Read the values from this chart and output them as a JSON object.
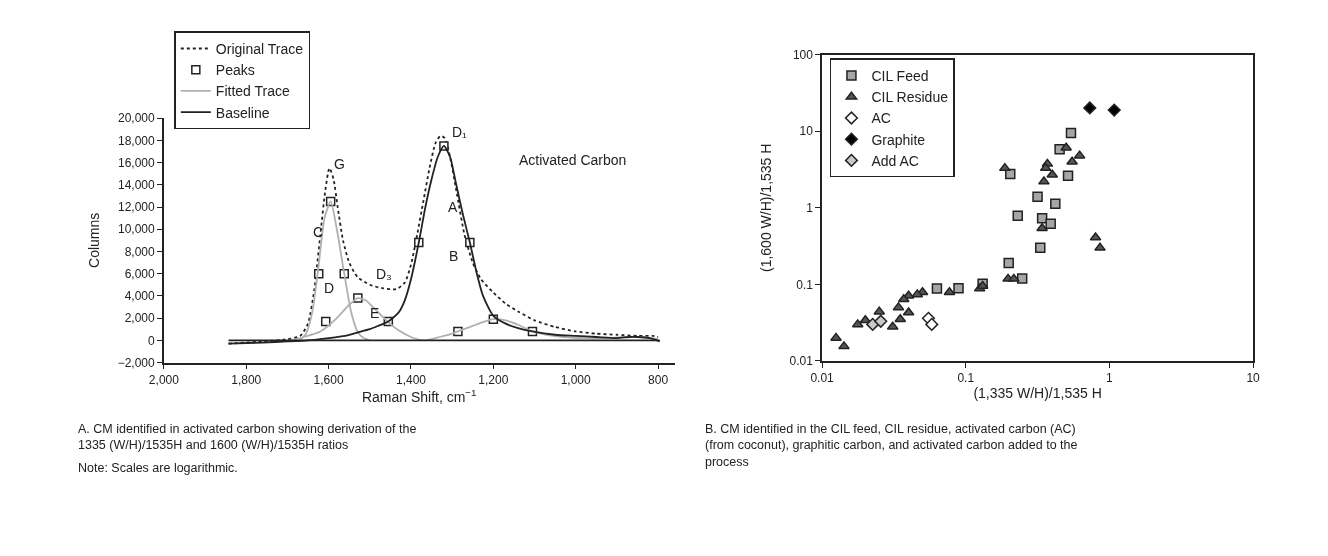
{
  "chart_data": [
    {
      "type": "line",
      "xlabel": "Raman Shift, cm$^{−1}$",
      "ylabel": "Columns",
      "xlim": [
        2000,
        760
      ],
      "ylim": [
        -2000,
        20000
      ],
      "xticks": [
        {
          "value": 2000,
          "label": "2,000"
        },
        {
          "value": 1800,
          "label": "1,800"
        },
        {
          "value": 1600,
          "label": "1,600"
        },
        {
          "value": 1400,
          "label": "1,400"
        },
        {
          "value": 1200,
          "label": "1,200"
        },
        {
          "value": 1000,
          "label": "1,000"
        },
        {
          "value": 800,
          "label": "800"
        }
      ],
      "yticks": [
        {
          "value": -2000,
          "label": "−2,000"
        },
        0,
        {
          "value": 2000,
          "label": "2,000"
        },
        {
          "value": 4000,
          "label": "4,000"
        },
        {
          "value": 6000,
          "label": "6,000"
        },
        {
          "value": 8000,
          "label": "8,000"
        },
        {
          "value": 10000,
          "label": "10,000"
        },
        {
          "value": 12000,
          "label": "12,000"
        },
        {
          "value": 14000,
          "label": "14,000"
        },
        {
          "value": 16000,
          "label": "16,000"
        },
        {
          "value": 18000,
          "label": "18,000"
        },
        {
          "value": 20000,
          "label": "20,000"
        }
      ],
      "grid": false,
      "legend": "top left",
      "series": [
        {
          "name": "Original Trace",
          "type": "line",
          "line_style": "dotted",
          "color": "#222222",
          "x": [
            1843,
            1760,
            1700,
            1669,
            1650,
            1635,
            1620,
            1608,
            1598,
            1588,
            1578,
            1565,
            1550,
            1530,
            1500,
            1470,
            1436,
            1415,
            1400,
            1385,
            1370,
            1355,
            1340,
            1328,
            1318,
            1305,
            1290,
            1270,
            1250,
            1230,
            1200,
            1170,
            1140,
            1100,
            1050,
            1000,
            950,
            900,
            850,
            812,
            800
          ],
          "values": [
            -300,
            -100,
            100,
            400,
            1500,
            4500,
            9500,
            13500,
            15500,
            14500,
            12000,
            9000,
            7000,
            5700,
            5000,
            4700,
            4600,
            5200,
            6800,
            9500,
            12500,
            15500,
            17800,
            18400,
            18200,
            16500,
            13500,
            9500,
            7000,
            5500,
            4300,
            3300,
            2600,
            1800,
            1200,
            800,
            600,
            500,
            400,
            400,
            300
          ]
        },
        {
          "name": "Peaks",
          "type": "scatter",
          "marker": "square",
          "color": "#ffffff",
          "x": [
            1595,
            1320,
            1381,
            1257,
            1624,
            1562,
            1607,
            1529,
            1455,
            1286,
            1200,
            1105
          ],
          "values": [
            12500,
            17500,
            8800,
            8800,
            6000,
            6000,
            1700,
            3800,
            1700,
            800,
            1900,
            800
          ]
        },
        {
          "name": "Fitted Trace",
          "type": "line",
          "line_style": "solid",
          "color": "#b0b0b0",
          "x": [
            1670,
            1655,
            1640,
            1625,
            1610,
            1595,
            1580,
            1562,
            1545,
            1530,
            1515,
            1500,
            null,
            1700,
            1660,
            1620,
            1580,
            1550,
            1529,
            1510,
            1490,
            1460,
            1430,
            1400,
            1367,
            1330,
            1300,
            1286,
            1250,
            1220,
            1200,
            1170,
            1140,
            1105,
            1070,
            1030,
            980,
            930,
            880,
            840,
            800
          ],
          "values": [
            0,
            600,
            2500,
            6500,
            11000,
            12500,
            10000,
            6000,
            2500,
            800,
            200,
            0,
            null,
            -100,
            300,
            800,
            2000,
            3200,
            3800,
            3600,
            2900,
            1800,
            900,
            300,
            0,
            300,
            600,
            800,
            1300,
            1700,
            1900,
            1800,
            1400,
            800,
            500,
            300,
            200,
            200,
            300,
            300,
            100
          ]
        },
        {
          "name": "Baseline",
          "type": "line",
          "line_style": "solid",
          "color": "#222222",
          "x": [
            1843,
            1760,
            1700,
            1650,
            1600,
            1560,
            1530,
            1500,
            1480,
            1455,
            1430,
            1415,
            1400,
            1381,
            1365,
            1350,
            1335,
            1320,
            1305,
            1290,
            1275,
            1257,
            1240,
            1225,
            1200,
            1170,
            1140,
            1105,
            1050,
            1000,
            950,
            900,
            870,
            850,
            820,
            796
          ],
          "values": [
            -300,
            -200,
            -100,
            0,
            200,
            400,
            700,
            1000,
            1300,
            1700,
            2500,
            3600,
            5500,
            8800,
            12000,
            14500,
            16500,
            17500,
            16500,
            14000,
            11500,
            8800,
            6000,
            4000,
            2200,
            1500,
            1100,
            800,
            500,
            400,
            300,
            200,
            300,
            300,
            200,
            -100
          ]
        },
        {
          "type": "line",
          "line_style": "solid",
          "color": "#222222",
          "x": [
            1843,
            796
          ],
          "values": [
            0,
            0
          ]
        }
      ],
      "annotations": [
        "G",
        "D₁",
        "Activated Carbon",
        "C",
        "A",
        "B",
        "D",
        "D₃",
        "E",
        "A. CM identified in activated carbon showing derivation of the 1335 (W/H)/1535H and 1600 (W/H)/1535H ratios",
        "Note: Scales are logarithmic."
      ]
    },
    {
      "type": "scatter",
      "xlabel": "(1,335 W/H)/1,535 H",
      "ylabel": "(1,600 W/H)/1,535 H",
      "log": "xy",
      "xlim": [
        0.01,
        10
      ],
      "ylim": [
        0.01,
        100
      ],
      "xticks": [
        0.01,
        0.1,
        1,
        10
      ],
      "yticks": [
        0.01,
        0.1,
        1,
        10,
        100
      ],
      "grid": false,
      "legend": "top left",
      "series": [
        {
          "name": "CIL Feed",
          "marker": "square",
          "color": "#a6a6a6",
          "x": [
            0.54,
            0.45,
            0.204,
            0.515,
            0.316,
            0.42,
            0.23,
            0.34,
            0.39,
            0.33,
            0.199,
            0.247,
            0.131,
            0.089,
            0.063
          ],
          "values": [
            9.5,
            5.8,
            2.77,
            2.63,
            1.39,
            1.13,
            0.79,
            0.73,
            0.62,
            0.3,
            0.19,
            0.119,
            0.102,
            0.089,
            0.088
          ]
        },
        {
          "name": "CIL Residue",
          "marker": "triangle",
          "color": "#555555",
          "x": [
            0.187,
            0.5,
            0.62,
            0.55,
            0.37,
            0.36,
            0.4,
            0.35,
            0.34,
            0.8,
            0.86,
            0.197,
            0.216,
            0.125,
            0.131,
            0.077,
            0.05,
            0.046,
            0.04,
            0.037,
            0.034,
            0.04,
            0.035,
            0.031,
            0.025,
            0.02,
            0.0177,
            0.0142,
            0.0125
          ],
          "values": [
            3.3,
            6.1,
            4.8,
            4.0,
            3.75,
            3.3,
            2.7,
            2.2,
            0.54,
            0.41,
            0.3,
            0.118,
            0.118,
            0.088,
            0.095,
            0.079,
            0.079,
            0.074,
            0.071,
            0.064,
            0.05,
            0.043,
            0.035,
            0.028,
            0.044,
            0.034,
            0.03,
            0.0155,
            0.02
          ]
        },
        {
          "name": "AC",
          "marker": "diamond",
          "color": "#ffffff",
          "x": [
            0.055,
            0.058
          ],
          "values": [
            0.036,
            0.03
          ]
        },
        {
          "name": "Graphite",
          "marker": "diamond",
          "color": "#000000",
          "x": [
            0.73,
            1.08
          ],
          "values": [
            20.2,
            18.9
          ]
        },
        {
          "name": "Add AC",
          "marker": "diamond",
          "color": "#c8c8c8",
          "x": [
            0.0225,
            0.0256
          ],
          "values": [
            0.03,
            0.033
          ]
        }
      ],
      "annotations": [
        "B. CM identified in the CIL feed, CIL residue, activated carbon (AC) (from coconut), graphitic carbon, and activated carbon added to the process"
      ]
    }
  ]
}
